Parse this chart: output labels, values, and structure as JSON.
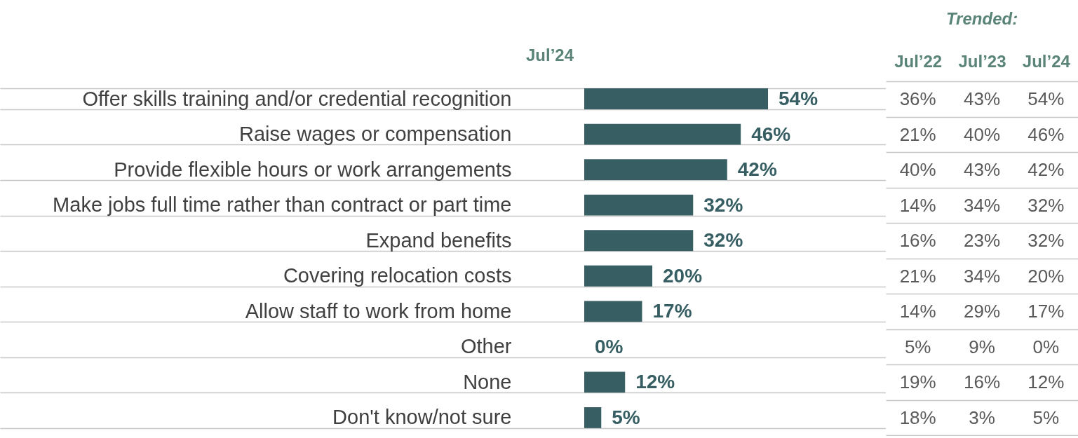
{
  "chart_data": [
    {
      "type": "bar",
      "orientation": "horizontal",
      "grid": "y",
      "categories": [
        "Offer skills training and/or credential recognition",
        "Raise wages or compensation",
        "Provide flexible hours or work arrangements",
        "Make jobs full time rather than contract or part time",
        "Expand benefits",
        "Covering relocation costs",
        "Allow staff to work from home",
        "Other",
        "None",
        "Don't know/not sure"
      ],
      "series": [
        {
          "name": "Jul’24",
          "color": "#365e63",
          "values": [
            54,
            46,
            42,
            32,
            32,
            20,
            17,
            0,
            12,
            5
          ],
          "value_labels": [
            "54%",
            "46%",
            "42%",
            "32%",
            "32%",
            "20%",
            "17%",
            "0%",
            "12%",
            "5%"
          ]
        }
      ]
    },
    {
      "type": "heatmap",
      "title": "Trended:",
      "grid": "y",
      "categories": [
        "Jul’22",
        "Jul’23",
        "Jul’24"
      ],
      "y_categories": [
        null,
        null,
        null,
        null,
        null,
        null,
        null,
        null,
        null,
        null
      ],
      "cells": [
        [
          36,
          43,
          54
        ],
        [
          21,
          40,
          46
        ],
        [
          40,
          43,
          42
        ],
        [
          14,
          34,
          32
        ],
        [
          16,
          23,
          32
        ],
        [
          21,
          34,
          20
        ],
        [
          14,
          29,
          17
        ],
        [
          5,
          9,
          0
        ],
        [
          19,
          16,
          12
        ],
        [
          18,
          3,
          5
        ]
      ],
      "cell_labels": [
        [
          "36%",
          "43%",
          "54%"
        ],
        [
          "21%",
          "40%",
          "46%"
        ],
        [
          "40%",
          "43%",
          "42%"
        ],
        [
          "14%",
          "34%",
          "32%"
        ],
        [
          "16%",
          "23%",
          "32%"
        ],
        [
          "21%",
          "34%",
          "20%"
        ],
        [
          "14%",
          "29%",
          "17%"
        ],
        [
          "5%",
          "9%",
          "0%"
        ],
        [
          "19%",
          "16%",
          "12%"
        ],
        [
          "18%",
          "3%",
          "5%"
        ]
      ]
    }
  ]
}
